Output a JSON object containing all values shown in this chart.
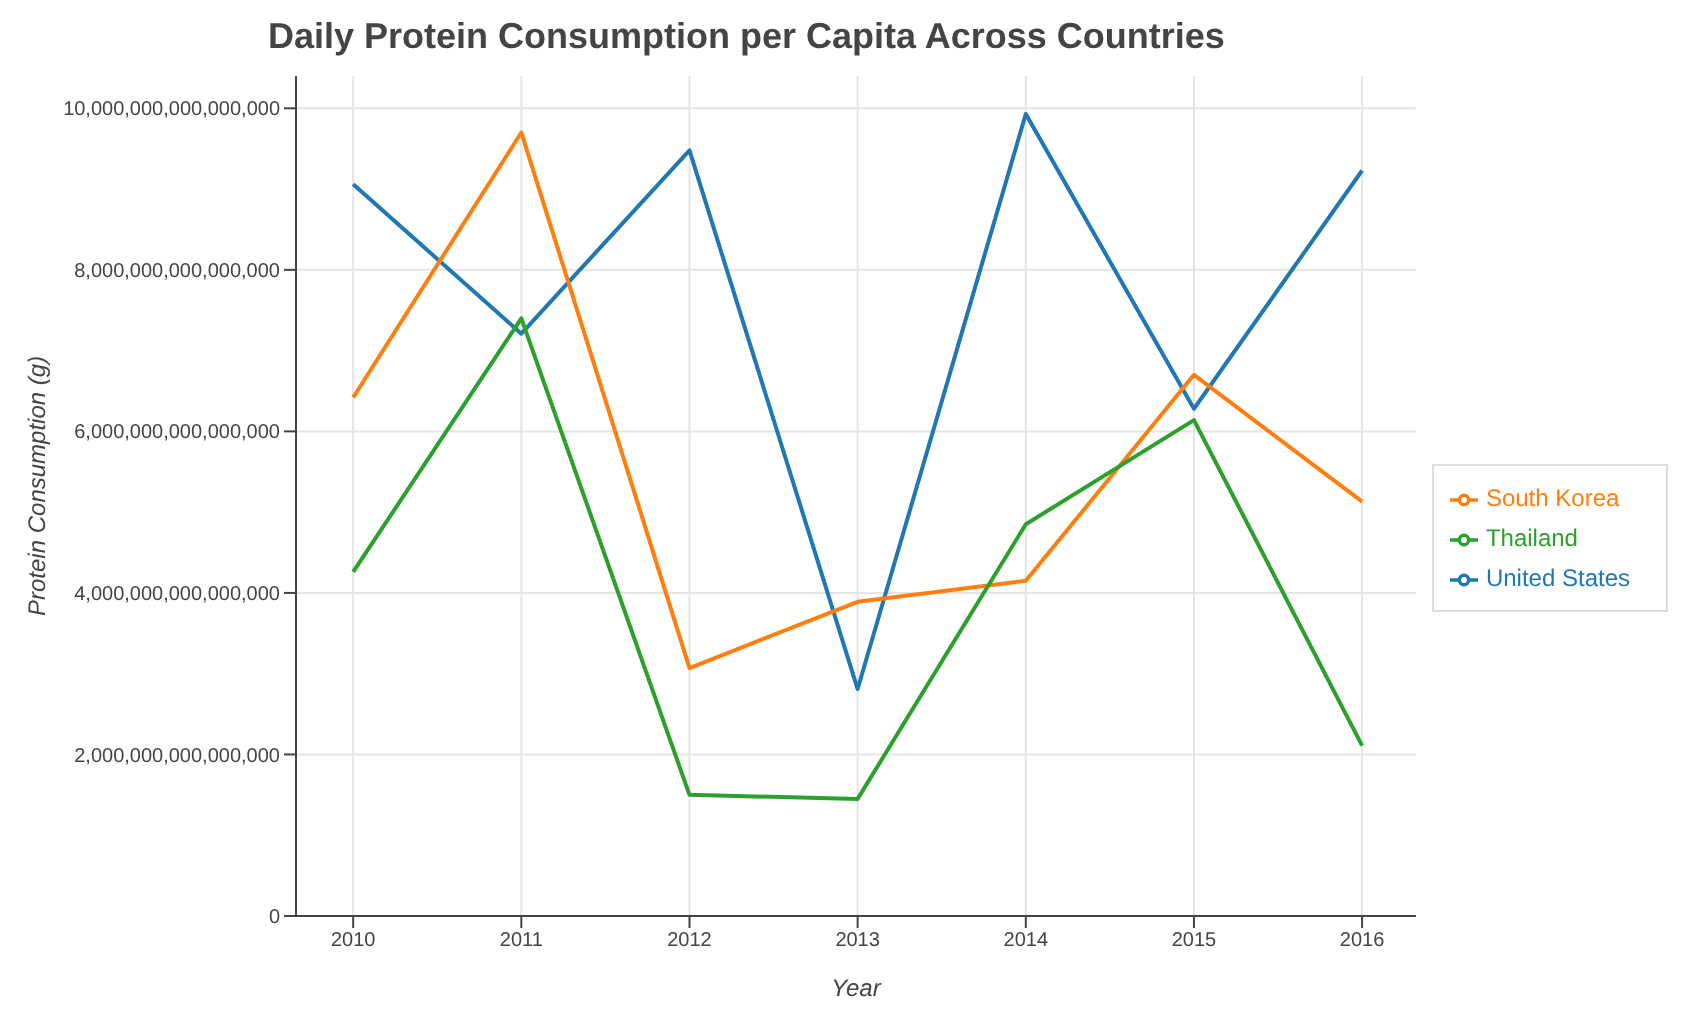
{
  "chart_data": {
    "type": "line",
    "title": "Daily Protein Consumption per Capita Across Countries",
    "xlabel": "Year",
    "ylabel": "Protein Consumption (g)",
    "x": [
      2010,
      2011,
      2012,
      2013,
      2014,
      2015,
      2016
    ],
    "series": [
      {
        "name": "United States",
        "color": "#1f77b4",
        "values": [
          9060000000000000,
          7210000000000000,
          9480000000000000,
          2810000000000000,
          9930000000000000,
          6280000000000000,
          9230000000000000
        ]
      },
      {
        "name": "South Korea",
        "color": "#ff7f0e",
        "values": [
          6420000000000000,
          9700000000000000,
          3070000000000000,
          3890000000000000,
          4150000000000000,
          6700000000000000,
          5130000000000000
        ]
      },
      {
        "name": "Thailand",
        "color": "#2ca02c",
        "values": [
          4260000000000000,
          7400000000000000,
          1500000000000000,
          1450000000000000,
          4850000000000000,
          6140000000000000,
          2110000000000000
        ]
      }
    ],
    "xlim": [
      2009.66,
      2016.32
    ],
    "xticks": [
      2010,
      2011,
      2012,
      2013,
      2014,
      2015,
      2016
    ],
    "ylim": [
      0,
      10400000000000000
    ],
    "yticks": [
      {
        "value": 0,
        "label": "0"
      },
      {
        "value": 2000000000000000,
        "label": "2,000,000,000,000,000"
      },
      {
        "value": 4000000000000000,
        "label": "4,000,000,000,000,000"
      },
      {
        "value": 6000000000000000,
        "label": "6,000,000,000,000,000"
      },
      {
        "value": 8000000000000000,
        "label": "8,000,000,000,000,000"
      },
      {
        "value": 10000000000000000,
        "label": "10,000,000,000,000,000"
      }
    ],
    "grid": true,
    "legend": "right",
    "marker": "none",
    "line_style": "solid"
  }
}
